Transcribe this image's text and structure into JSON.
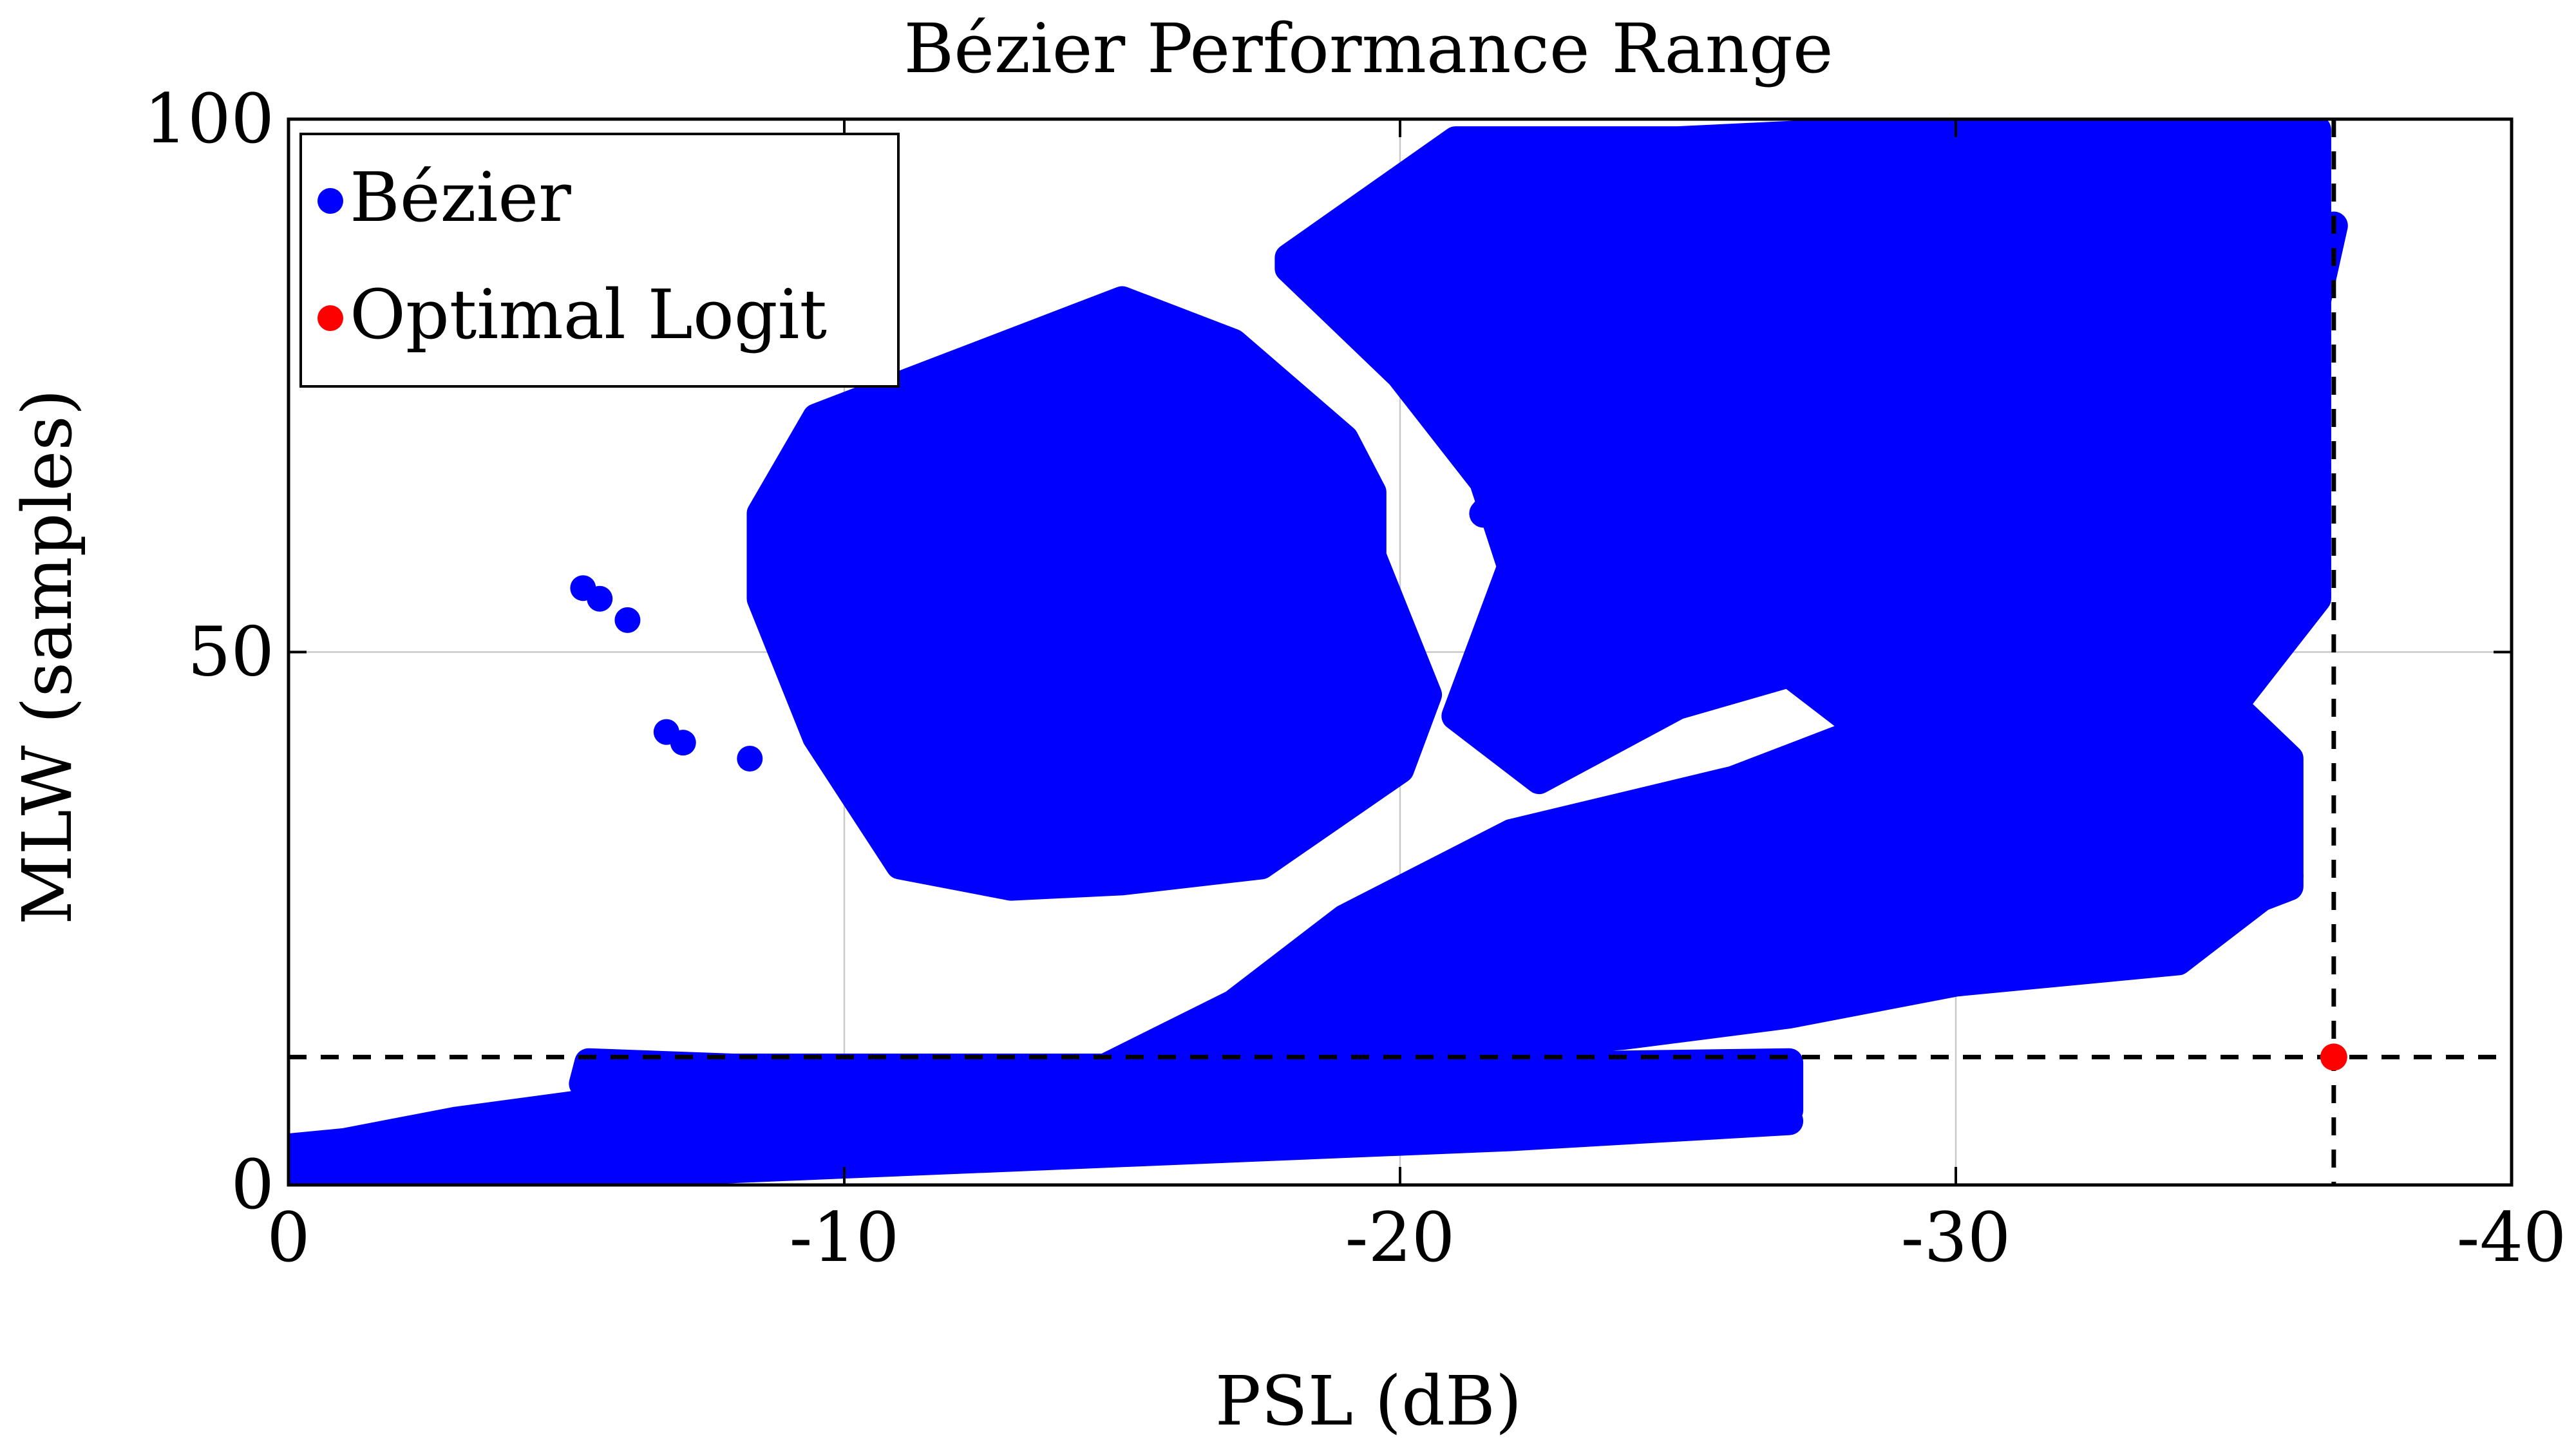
{
  "chart_data": {
    "type": "scatter",
    "title": "Bézier Performance Range",
    "xlabel": "PSL (dB)",
    "ylabel": "MLW (samples)",
    "xlim": [
      0,
      -40
    ],
    "ylim": [
      0,
      100
    ],
    "x_ticks": [
      0,
      -10,
      -20,
      -30,
      -40
    ],
    "x_tick_labels": [
      "0",
      "-10",
      "-20",
      "-30",
      "-40"
    ],
    "y_ticks": [
      0,
      50,
      100
    ],
    "y_tick_labels": [
      "0",
      "50",
      "100"
    ],
    "grid": true,
    "legend_position": "top-left",
    "series": [
      {
        "name": "Bézier",
        "color": "#0000ff",
        "regions": [
          {
            "shape": "polygon",
            "points": [
              [
                0,
                0.5
              ],
              [
                -8,
                1.5
              ],
              [
                -15,
                3
              ],
              [
                -22,
                4.5
              ],
              [
                -27,
                6
              ],
              [
                -26,
                9
              ],
              [
                -22,
                10
              ],
              [
                -15,
                10.5
              ],
              [
                -8,
                9.5
              ],
              [
                -3,
                6
              ],
              [
                -1,
                4
              ],
              [
                0,
                3.5
              ]
            ]
          },
          {
            "shape": "polygon",
            "points": [
              [
                -5.3,
                9.5
              ],
              [
                -5.4,
                11.5
              ],
              [
                -8,
                11
              ],
              [
                -15,
                11
              ],
              [
                -20,
                11
              ],
              [
                -27,
                11.5
              ],
              [
                -27,
                7
              ],
              [
                -15,
                6
              ],
              [
                -8,
                7
              ]
            ]
          },
          {
            "shape": "polygon",
            "points": [
              [
                -14.5,
                10.5
              ],
              [
                -17,
                17
              ],
              [
                -19,
                25
              ],
              [
                -22,
                33
              ],
              [
                -26,
                38
              ],
              [
                -28,
                42
              ],
              [
                -30,
                40
              ],
              [
                -33,
                35
              ],
              [
                -36,
                29
              ],
              [
                -34,
                21
              ],
              [
                -30,
                19
              ],
              [
                -27,
                16
              ],
              [
                -24,
                14
              ],
              [
                -19,
                12
              ]
            ]
          },
          {
            "shape": "polygon",
            "points": [
              [
                -8.5,
                63
              ],
              [
                -9.5,
                72
              ],
              [
                -11.5,
                76
              ],
              [
                -13.5,
                80
              ],
              [
                -15,
                83
              ],
              [
                -17,
                79
              ],
              [
                -19,
                70
              ],
              [
                -19.5,
                65
              ],
              [
                -19.5,
                59
              ],
              [
                -20.5,
                46
              ],
              [
                -20,
                39
              ],
              [
                -17.5,
                30
              ],
              [
                -15,
                28.5
              ],
              [
                -13,
                28
              ],
              [
                -11,
                30
              ],
              [
                -9.5,
                42
              ],
              [
                -8.5,
                55
              ]
            ]
          },
          {
            "shape": "polygon",
            "points": [
              [
                -18,
                87
              ],
              [
                -21,
                98
              ],
              [
                -25,
                98
              ],
              [
                -29,
                99
              ],
              [
                -32,
                99
              ],
              [
                -36.5,
                99
              ],
              [
                -36.5,
                55
              ],
              [
                -35,
                45
              ],
              [
                -36,
                40
              ],
              [
                -36,
                28
              ],
              [
                -33,
                22
              ],
              [
                -32,
                28
              ],
              [
                -30,
                36
              ],
              [
                -28,
                44
              ],
              [
                -27,
                48
              ],
              [
                -25,
                45
              ],
              [
                -22.5,
                38
              ],
              [
                -21,
                44
              ],
              [
                -22,
                58
              ],
              [
                -21.5,
                66
              ],
              [
                -20,
                76
              ],
              [
                -18,
                86
              ]
            ]
          },
          {
            "shape": "polygon",
            "points": [
              [
                -21.5,
                63
              ],
              [
                -24,
                65
              ],
              [
                -27,
                66
              ],
              [
                -29.5,
                63
              ],
              [
                -32,
                60
              ],
              [
                -31.5,
                67
              ],
              [
                -33.5,
                71
              ],
              [
                -35.5,
                73
              ],
              [
                -36.5,
                83
              ],
              [
                -36.8,
                90
              ],
              [
                -35,
                88
              ],
              [
                -32,
                86
              ],
              [
                -30,
                84
              ],
              [
                -28,
                81
              ],
              [
                -26,
                77
              ],
              [
                -24,
                72
              ],
              [
                -22,
                66
              ]
            ]
          },
          {
            "shape": "points",
            "points": [
              [
                -5.3,
                56
              ],
              [
                -5.6,
                55
              ],
              [
                -6.1,
                53
              ],
              [
                -6.8,
                42.5
              ],
              [
                -7.1,
                41.5
              ],
              [
                -8.3,
                40
              ]
            ]
          }
        ]
      },
      {
        "name": "Optimal Logit",
        "color": "#ff0000",
        "points": [
          [
            -36.8,
            12
          ]
        ]
      }
    ],
    "reference_lines": [
      {
        "orientation": "horizontal",
        "y": 12,
        "style": "dashed",
        "color": "#000000"
      },
      {
        "orientation": "vertical",
        "x": -36.8,
        "style": "dashed",
        "color": "#000000"
      }
    ]
  }
}
